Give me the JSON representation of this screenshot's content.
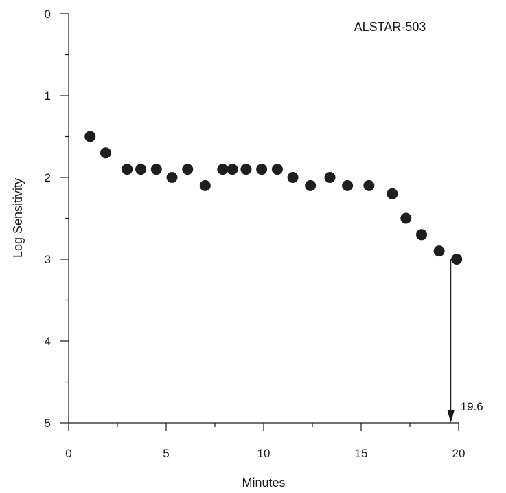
{
  "chart_data": {
    "type": "scatter",
    "title": "ALSTAR-503",
    "xlabel": "Minutes",
    "ylabel": "Log Sensitivity",
    "xlim": [
      0,
      20
    ],
    "ylim": [
      0,
      5
    ],
    "y_inverted": true,
    "grid": false,
    "x_ticks": [
      0,
      5,
      10,
      15,
      20
    ],
    "y_ticks": [
      0,
      1,
      2,
      3,
      4,
      5
    ],
    "x_tick_labels": [
      "0",
      "5",
      "10",
      "15",
      "20"
    ],
    "y_tick_labels": [
      "0",
      "1",
      "2",
      "3",
      "4",
      "5"
    ],
    "points": [
      {
        "x": 1.1,
        "y": 1.5
      },
      {
        "x": 1.9,
        "y": 1.7
      },
      {
        "x": 3.0,
        "y": 1.9
      },
      {
        "x": 3.7,
        "y": 1.9
      },
      {
        "x": 4.5,
        "y": 1.9
      },
      {
        "x": 5.3,
        "y": 2.0
      },
      {
        "x": 6.1,
        "y": 1.9
      },
      {
        "x": 7.0,
        "y": 2.1
      },
      {
        "x": 7.9,
        "y": 1.9
      },
      {
        "x": 8.4,
        "y": 1.9
      },
      {
        "x": 9.1,
        "y": 1.9
      },
      {
        "x": 9.9,
        "y": 1.9
      },
      {
        "x": 10.7,
        "y": 1.9
      },
      {
        "x": 11.5,
        "y": 2.0
      },
      {
        "x": 12.4,
        "y": 2.1
      },
      {
        "x": 13.4,
        "y": 2.0
      },
      {
        "x": 14.3,
        "y": 2.1
      },
      {
        "x": 15.4,
        "y": 2.1
      },
      {
        "x": 16.6,
        "y": 2.2
      },
      {
        "x": 17.3,
        "y": 2.5
      },
      {
        "x": 18.1,
        "y": 2.7
      },
      {
        "x": 19.0,
        "y": 2.9
      },
      {
        "x": 19.9,
        "y": 3.0
      }
    ],
    "annotations": [
      {
        "text": "19.6",
        "arrow_x": 19.6,
        "arrow_from_y": 3.0,
        "arrow_to_y": 5.0
      }
    ]
  }
}
